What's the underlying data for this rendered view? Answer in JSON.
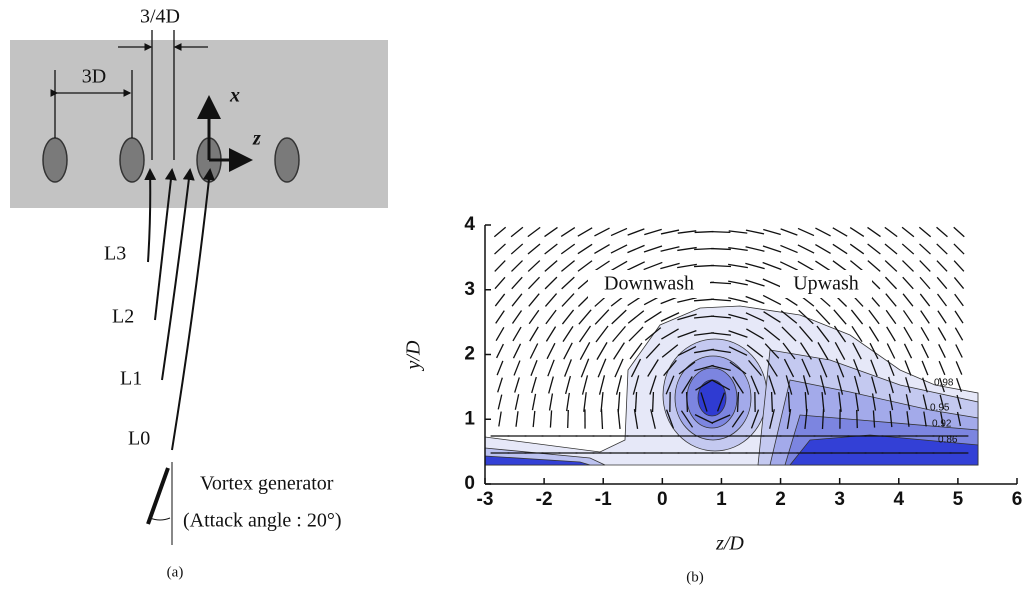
{
  "panel_a": {
    "spacing_label": "3/4D",
    "pitch_label": "3D",
    "x_label": "x",
    "z_label": "z",
    "lines": [
      "L3",
      "L2",
      "L1",
      "L0"
    ],
    "generator": "Vortex generator",
    "attack_angle": "(Attack angle : 20°)",
    "caption": "(a)"
  },
  "chart_data": {
    "type": "contour",
    "x_label": "z/D",
    "y_label": "y/D",
    "xlim": [
      -3,
      6
    ],
    "ylim": [
      0,
      4
    ],
    "xticks": [
      -3,
      -2,
      -1,
      0,
      1,
      2,
      3,
      4,
      5,
      6
    ],
    "yticks": [
      0,
      1,
      2,
      3,
      4
    ],
    "levels": [
      0.98,
      0.95,
      0.92,
      0.86
    ],
    "annotations": [
      "Downwash",
      "Upwash"
    ],
    "caption": "(b)"
  }
}
